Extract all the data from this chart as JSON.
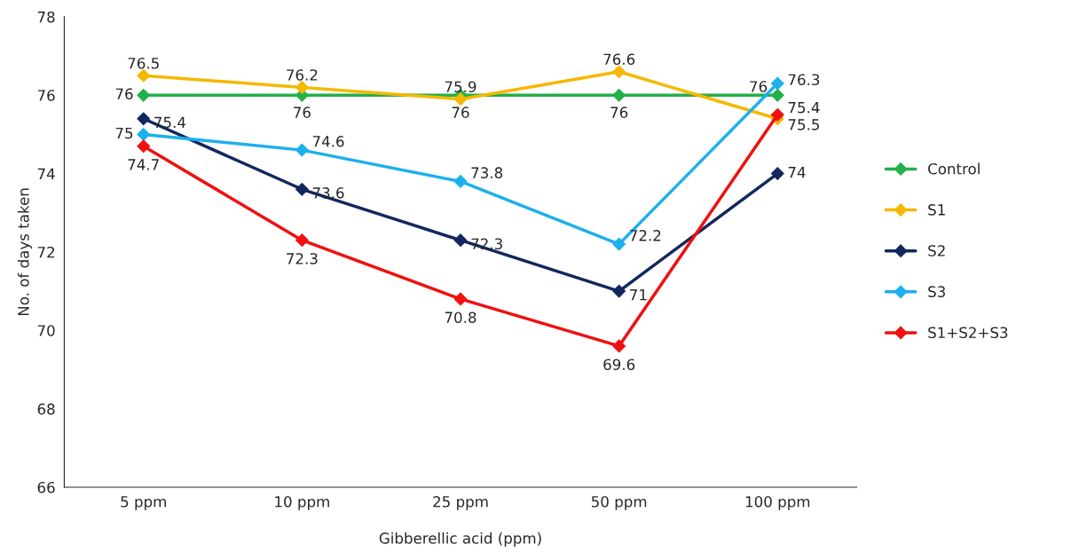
{
  "chart_data": {
    "type": "line",
    "xlabel": "Gibberellic acid (ppm)",
    "ylabel": "No. of days taken",
    "categories": [
      "5 ppm",
      "10 ppm",
      "25 ppm",
      "50 ppm",
      "100 ppm"
    ],
    "series": [
      {
        "name": "Control",
        "color": "#22b04a",
        "values": [
          76,
          76,
          76,
          76,
          76
        ]
      },
      {
        "name": "S1",
        "color": "#f5b800",
        "values": [
          76.5,
          76.2,
          75.9,
          76.6,
          75.4
        ]
      },
      {
        "name": "S2",
        "color": "#12275e",
        "values": [
          75.4,
          73.6,
          72.3,
          71,
          74
        ]
      },
      {
        "name": "S3",
        "color": "#1cb0ec",
        "values": [
          75,
          74.6,
          73.8,
          72.2,
          76.3
        ]
      },
      {
        "name": "S1+S2+S3",
        "color": "#f01010",
        "values": [
          74.7,
          72.3,
          70.8,
          69.6,
          75.5
        ]
      }
    ],
    "ylim": [
      66,
      78
    ],
    "yticks": [
      66,
      68,
      70,
      72,
      74,
      76,
      78
    ],
    "data_labels": true,
    "marker": "diamond",
    "line_style": "solid",
    "grid": false,
    "legend": "right"
  }
}
